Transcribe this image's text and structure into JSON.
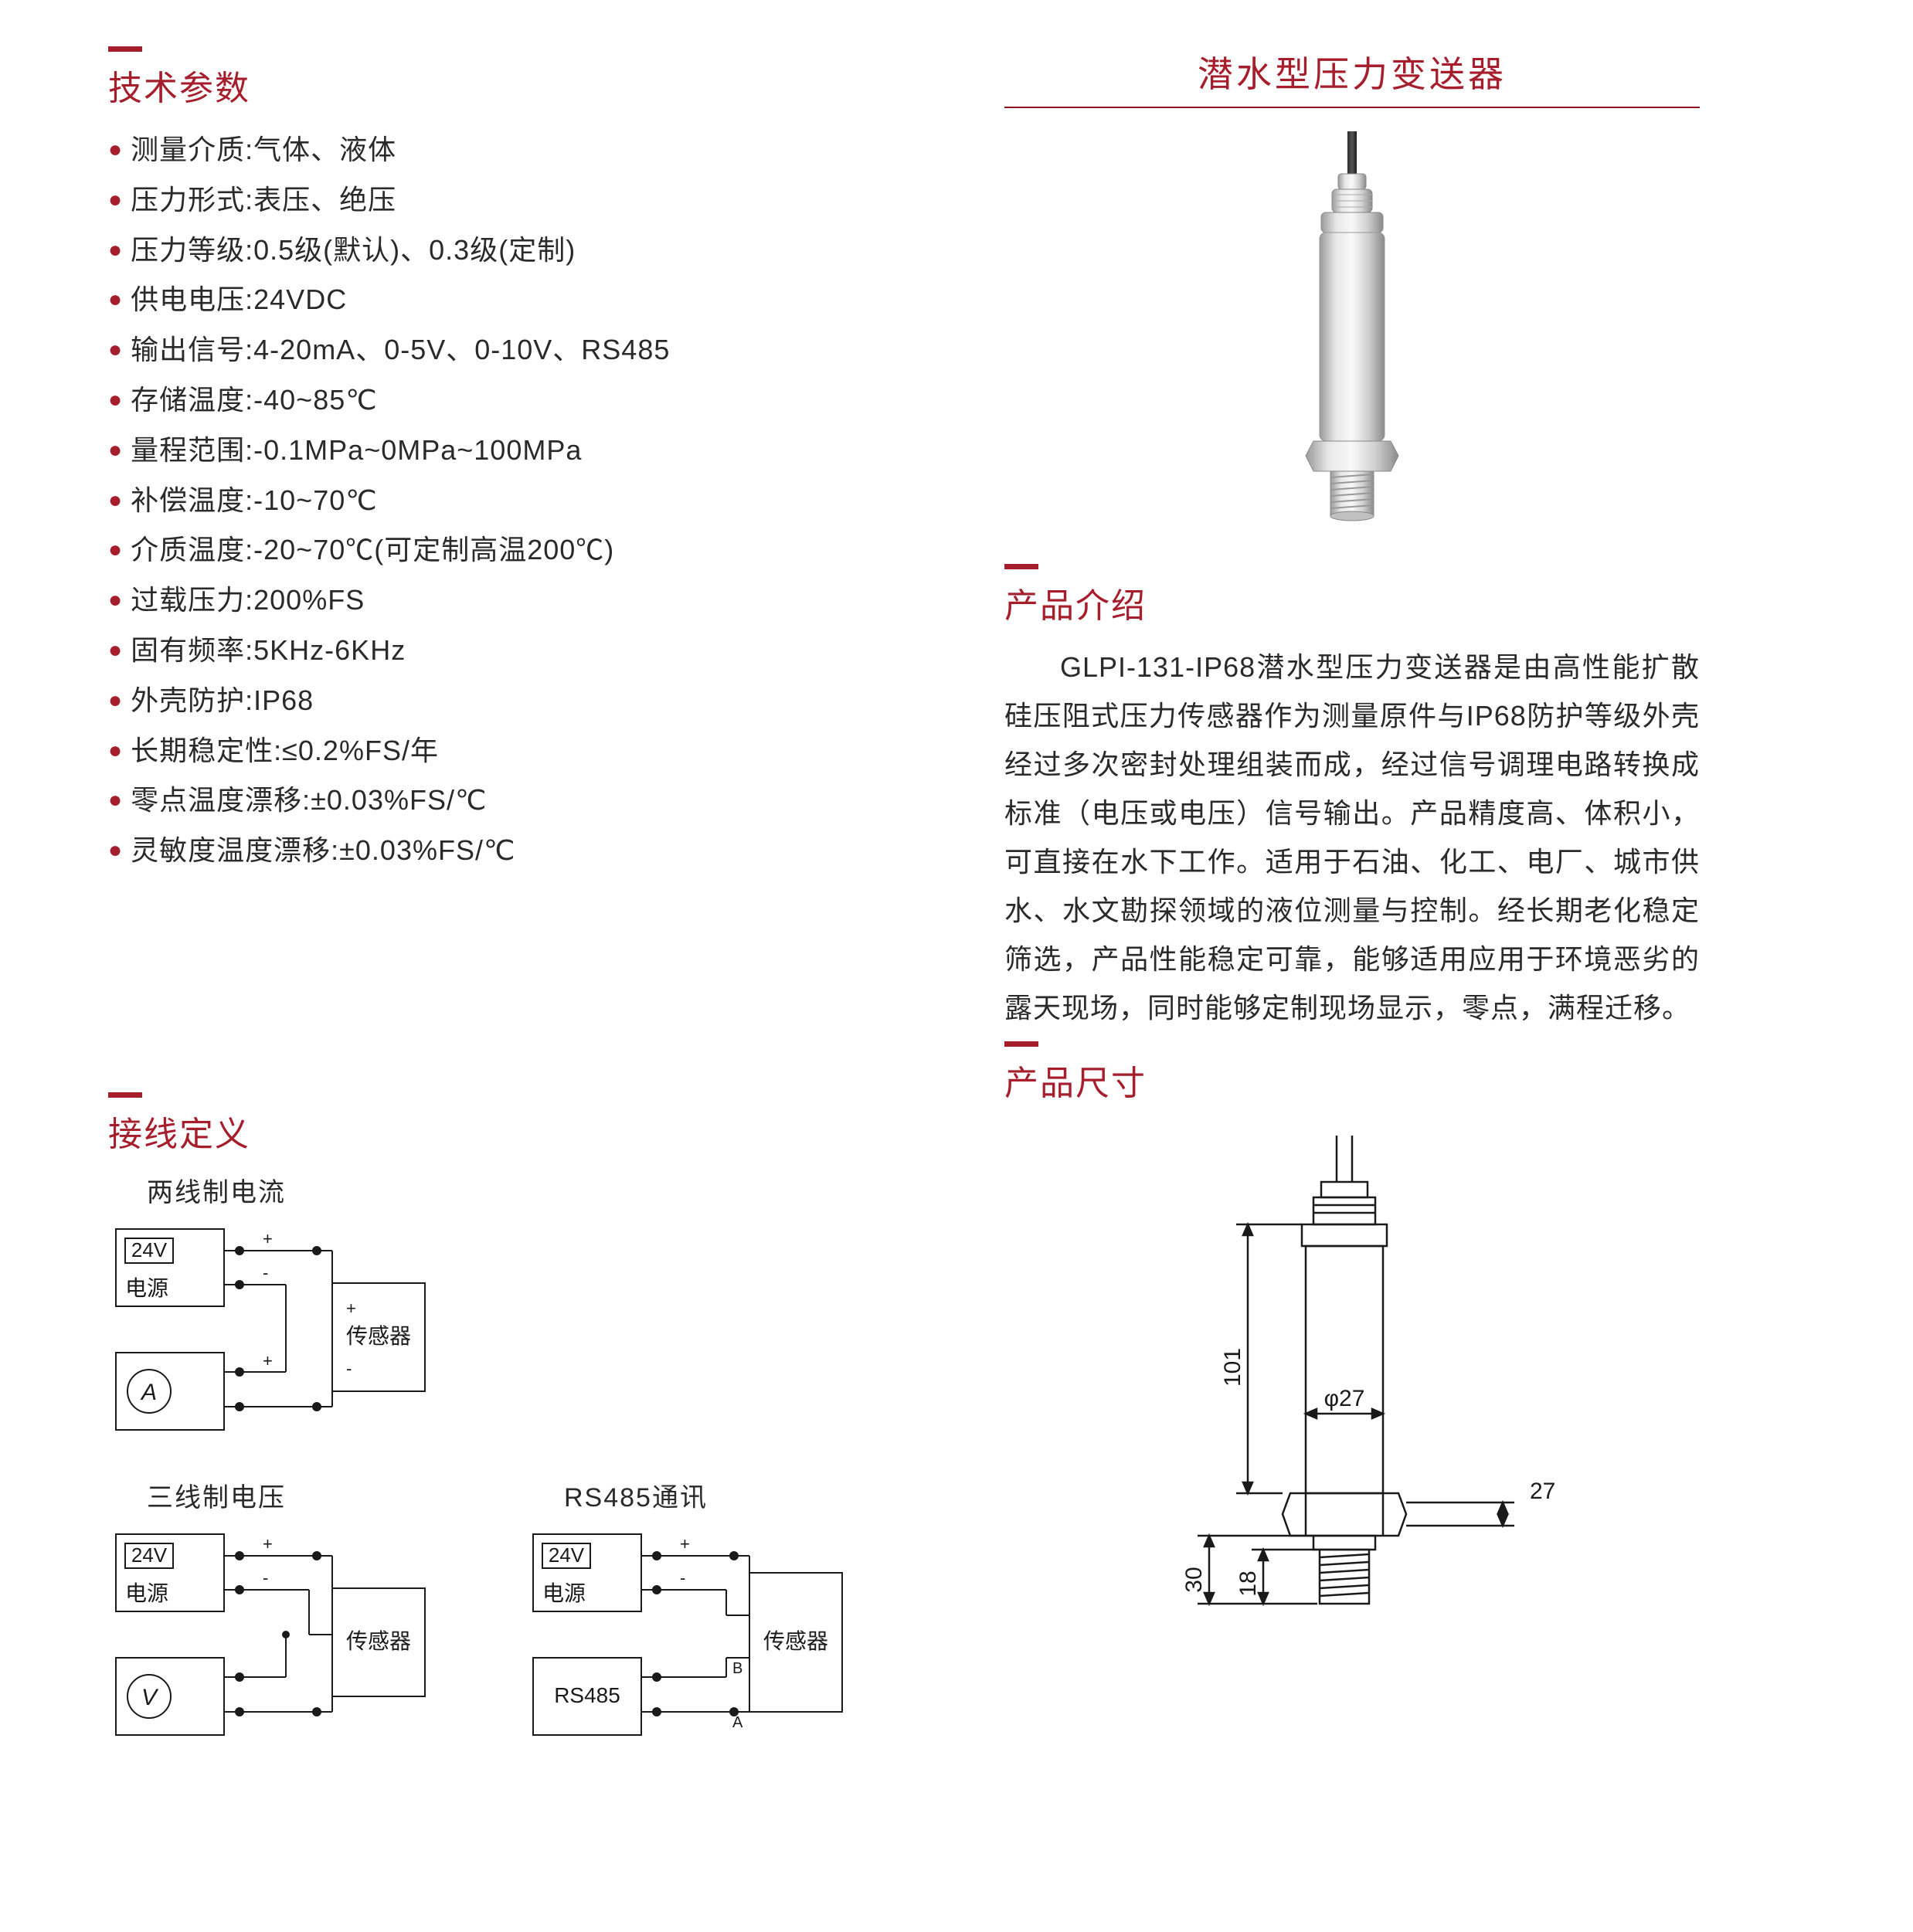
{
  "colors": {
    "accent": "#a61e2c",
    "text": "#2a2a2a",
    "line": "#1a1a1a",
    "rule": "#8b1020"
  },
  "left": {
    "specs_title": "技术参数",
    "specs": [
      {
        "label": "测量介质:",
        "value": "气体、液体"
      },
      {
        "label": "压力形式:",
        "value": "表压、绝压"
      },
      {
        "label": "压力等级:",
        "value": "0.5级(默认)、0.3级(定制)"
      },
      {
        "label": "供电电压:",
        "value": "24VDC"
      },
      {
        "label": "输出信号:",
        "value": "4-20mA、0-5V、0-10V、RS485"
      },
      {
        "label": "存储温度:",
        "value": "-40~85℃"
      },
      {
        "label": "量程范围:",
        "value": "-0.1MPa~0MPa~100MPa"
      },
      {
        "label": "补偿温度:",
        "value": "-10~70℃"
      },
      {
        "label": "介质温度:",
        "value": "-20~70℃(可定制高温200℃)"
      },
      {
        "label": "过载压力:",
        "value": "200%FS"
      },
      {
        "label": "固有频率:",
        "value": "5KHz-6KHz"
      },
      {
        "label": "外壳防护:",
        "value": "IP68"
      },
      {
        "label": "长期稳定性:",
        "value": " ≤0.2%FS/年"
      },
      {
        "label": "零点温度漂移:",
        "value": " ±0.03%FS/℃"
      },
      {
        "label": "灵敏度温度漂移:",
        "value": " ±0.03%FS/℃"
      }
    ],
    "wiring_title": "接线定义",
    "wiring": {
      "two_wire_label": "两线制电流",
      "three_wire_label": "三线制电压",
      "rs485_label": "RS485通讯",
      "box_24v": "24V",
      "box_power": "电源",
      "box_sensor": "传感器",
      "box_rs485": "RS485",
      "sym_A": "A",
      "sym_V": "V",
      "sym_plus": "+",
      "sym_minus": "-",
      "sym_B": "B",
      "sym_Ain": "A"
    }
  },
  "right": {
    "product_title": "潜水型压力变送器",
    "intro_title": "产品介绍",
    "intro_body": "GLPI-131-IP68潜水型压力变送器是由高性能扩散硅压阻式压力传感器作为测量原件与IP68防护等级外壳经过多次密封处理组装而成，经过信号调理电路转换成标准（电压或电压）信号输出。产品精度高、体积小，可直接在水下工作。适用于石油、化工、电厂、城市供水、水文勘探领域的液位测量与控制。经长期老化稳定筛选，产品性能稳定可靠，能够适用应用于环境恶劣的露天现场，同时能够定制现场显示，零点，满程迁移。",
    "dim_title": "产品尺寸",
    "dim": {
      "body_h": "101",
      "body_dia": "φ27",
      "hex_w": "27",
      "thread_h": "30",
      "thread_inner": "18"
    }
  }
}
